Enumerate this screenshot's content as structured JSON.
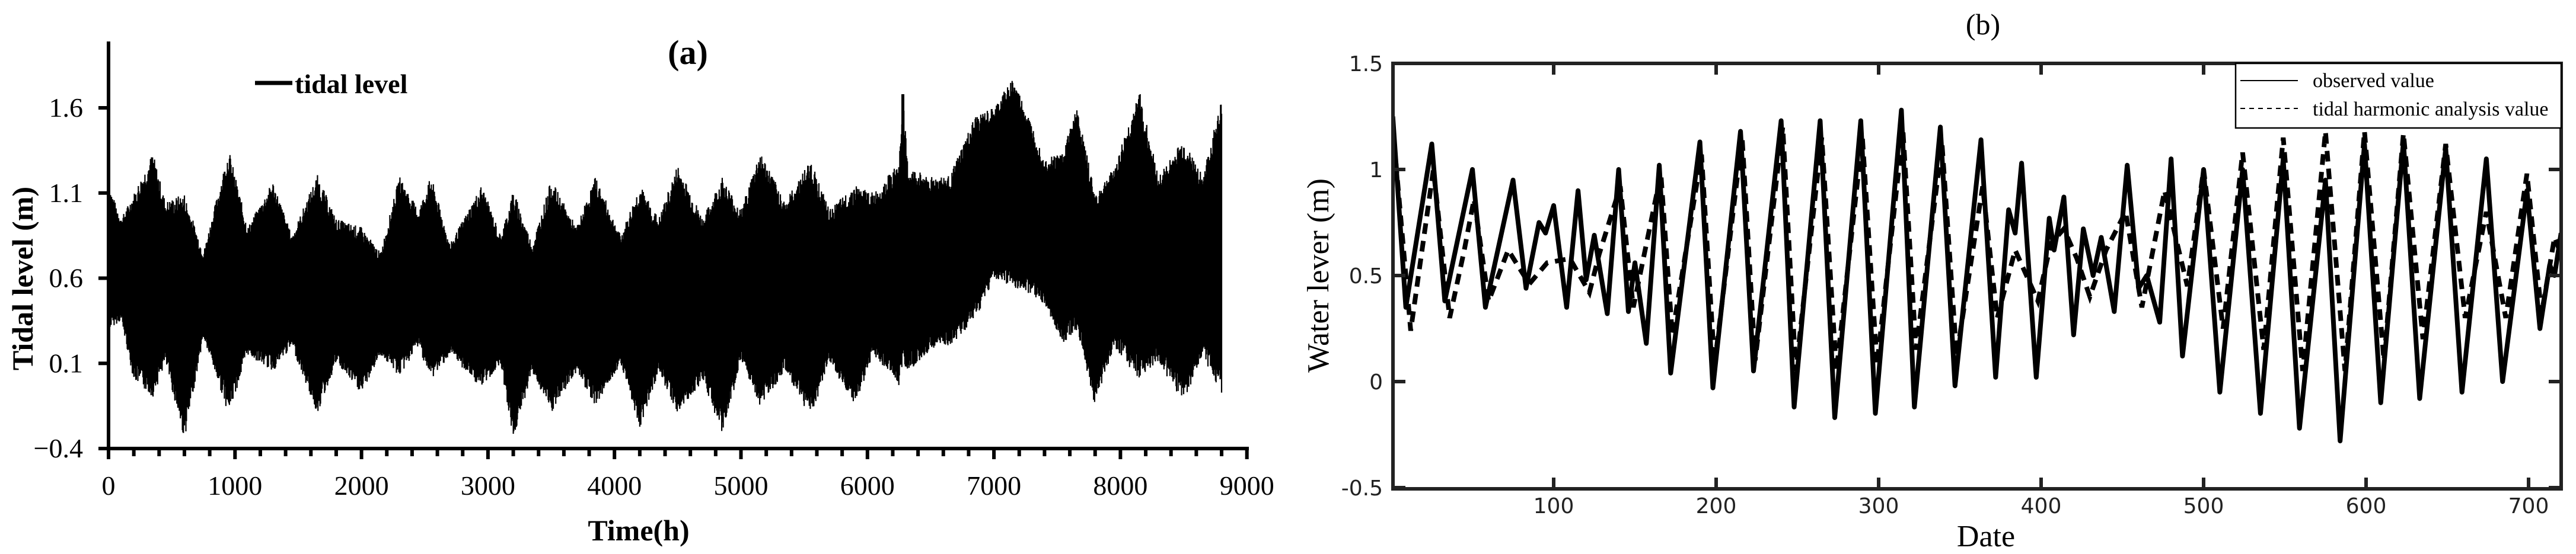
{
  "chart_data": [
    {
      "panel": "(a)",
      "type": "line",
      "title": "(a)",
      "xlabel": "Time(h)",
      "ylabel": "Tidal level (m)",
      "xlim": [
        0,
        9000
      ],
      "ylim": [
        -0.4,
        2.1
      ],
      "xticks": [
        "0",
        "1000",
        "2000",
        "3000",
        "4000",
        "5000",
        "6000",
        "7000",
        "8000",
        "9000"
      ],
      "yticks": [
        "-0.4",
        "0.1",
        "0.6",
        "1.1",
        "1.6"
      ],
      "legend": [
        "tidal level"
      ],
      "legend_position": "upper-left",
      "grid": false,
      "note": "Hourly tidal series rendered as dense oscillation; values below are approximate upper/lower envelopes read from the plot",
      "series": [
        {
          "name": "tidal level",
          "envelope_x": [
            0,
            100,
            200,
            350,
            450,
            600,
            750,
            950,
            1100,
            1300,
            1450,
            1650,
            1800,
            2000,
            2150,
            2300,
            2450,
            2550,
            2700,
            2950,
            3100,
            3200,
            3350,
            3500,
            3700,
            3850,
            4050,
            4200,
            4350,
            4500,
            4700,
            4850,
            5000,
            5150,
            5350,
            5550,
            5700,
            5900,
            6050,
            6250,
            6280,
            6320,
            6500,
            6650,
            6850,
            7000,
            7150,
            7300,
            7400,
            7550,
            7650,
            7800,
            7950,
            8150,
            8300,
            8500,
            8650,
            8800
          ],
          "upper": [
            1.15,
            0.95,
            1.1,
            1.34,
            1.05,
            1.1,
            0.75,
            1.36,
            0.9,
            1.17,
            0.85,
            1.21,
            0.95,
            0.9,
            0.75,
            1.2,
            1.0,
            1.2,
            0.8,
            1.15,
            0.85,
            1.12,
            0.8,
            1.18,
            0.9,
            1.2,
            0.85,
            1.15,
            0.95,
            1.27,
            0.95,
            1.2,
            1.0,
            1.35,
            1.05,
            1.3,
            1.0,
            1.15,
            1.1,
            1.28,
            1.68,
            1.25,
            1.2,
            1.2,
            1.55,
            1.6,
            1.78,
            1.5,
            1.3,
            1.35,
            1.62,
            1.1,
            1.25,
            1.7,
            1.2,
            1.42,
            1.2,
            1.65
          ],
          "lower": [
            0.3,
            0.35,
            0.0,
            -0.1,
            0.1,
            -0.35,
            0.25,
            -0.2,
            0.15,
            0.05,
            0.2,
            -0.2,
            0.1,
            -0.08,
            0.15,
            0.02,
            0.2,
            0.0,
            0.15,
            -0.05,
            0.1,
            -0.35,
            0.05,
            -0.2,
            0.05,
            -0.15,
            0.1,
            -0.28,
            0.05,
            -0.2,
            0.0,
            -0.32,
            0.1,
            -0.15,
            0.05,
            -0.22,
            0.1,
            -0.15,
            0.15,
            -0.03,
            0.1,
            0.05,
            0.18,
            0.2,
            0.35,
            0.6,
            0.55,
            0.5,
            0.45,
            0.2,
            0.3,
            -0.15,
            0.2,
            0.0,
            0.1,
            -0.13,
            0.15,
            -0.1
          ],
          "color": "#000000"
        }
      ]
    },
    {
      "panel": "(b)",
      "type": "line",
      "title": "(b)",
      "xlabel": "Date",
      "ylabel": "Water lever (m)",
      "xlim": [
        1,
        720
      ],
      "ylim": [
        -0.5,
        1.5
      ],
      "xticks": [
        "100",
        "200",
        "300",
        "400",
        "500",
        "600",
        "700"
      ],
      "yticks": [
        "1.5",
        "1",
        "0.5",
        "0",
        "-0.5"
      ],
      "legend": [
        "observed value",
        "tidal harmonic analysis value"
      ],
      "legend_position": "upper-right",
      "grid": false,
      "series": [
        {
          "name": "observed value",
          "style": "solid",
          "x": [
            1,
            9,
            25,
            33,
            50,
            58,
            75,
            83,
            91,
            95,
            100,
            108,
            115,
            120,
            125,
            133,
            140,
            146,
            150,
            157,
            165,
            172,
            190,
            198,
            215,
            223,
            240,
            248,
            264,
            273,
            289,
            298,
            314,
            322,
            338,
            347,
            363,
            372,
            380,
            384,
            388,
            397,
            405,
            408,
            414,
            420,
            426,
            432,
            437,
            445,
            453,
            460,
            465,
            473,
            480,
            487,
            500,
            510,
            524,
            535,
            549,
            559,
            575,
            584,
            599,
            609,
            623,
            633,
            649,
            659,
            674,
            684,
            699,
            707,
            713,
            716,
            720
          ],
          "y": [
            1.25,
            0.35,
            1.12,
            0.38,
            1.0,
            0.35,
            0.95,
            0.44,
            0.75,
            0.7,
            0.83,
            0.35,
            0.9,
            0.48,
            0.69,
            0.32,
            1.0,
            0.33,
            0.56,
            0.18,
            1.02,
            0.04,
            1.13,
            -0.03,
            1.18,
            0.05,
            1.23,
            -0.12,
            1.23,
            -0.17,
            1.23,
            -0.15,
            1.28,
            -0.12,
            1.2,
            -0.02,
            1.14,
            0.02,
            0.81,
            0.7,
            1.03,
            0.02,
            0.77,
            0.62,
            0.87,
            0.22,
            0.72,
            0.5,
            0.68,
            0.33,
            1.02,
            0.44,
            0.5,
            0.28,
            1.05,
            0.12,
            1.0,
            -0.05,
            1.0,
            -0.15,
            1.05,
            -0.22,
            0.95,
            -0.28,
            1.12,
            -0.1,
            1.13,
            -0.08,
            1.1,
            -0.05,
            1.05,
            0.0,
            0.9,
            0.25,
            0.55,
            0.5,
            0.7
          ],
          "color": "#000000"
        },
        {
          "name": "tidal harmonic analysis value",
          "style": "dashed",
          "x": [
            1,
            12,
            26,
            36,
            45,
            51,
            60,
            72,
            85,
            96,
            110,
            122,
            128,
            141,
            149,
            166,
            173,
            191,
            199,
            216,
            224,
            241,
            249,
            265,
            274,
            290,
            299,
            315,
            323,
            339,
            348,
            364,
            373,
            384,
            398,
            406,
            414,
            422,
            430,
            440,
            452,
            462,
            476,
            490,
            500,
            512,
            524,
            537,
            549,
            561,
            575,
            587,
            599,
            611,
            623,
            635,
            649,
            661,
            674,
            686,
            699,
            708,
            716,
            720
          ],
          "y": [
            1.2,
            0.24,
            1.0,
            0.3,
            0.62,
            0.86,
            0.38,
            0.62,
            0.46,
            0.56,
            0.58,
            0.42,
            0.6,
            0.92,
            0.35,
            0.98,
            0.22,
            1.07,
            0.08,
            1.15,
            0.1,
            1.2,
            0.05,
            1.15,
            0.05,
            1.15,
            0.08,
            1.18,
            0.15,
            1.12,
            0.12,
            0.92,
            0.3,
            0.62,
            0.38,
            0.65,
            0.72,
            0.58,
            0.4,
            0.62,
            0.8,
            0.35,
            0.9,
            0.45,
            1.0,
            0.25,
            1.08,
            0.15,
            1.15,
            0.05,
            1.18,
            0.05,
            1.18,
            0.1,
            1.17,
            0.2,
            1.12,
            0.3,
            0.8,
            0.3,
            0.98,
            0.32,
            0.68,
            0.6
          ],
          "color": "#000000"
        }
      ]
    }
  ],
  "panel_a": {
    "title": "(a)",
    "xlabel": "Time(h)",
    "ylabel": "Tidal level (m)",
    "legend_label": "tidal level",
    "yticks": [
      "1.6",
      "1.1",
      "0.6",
      "0.1",
      "−0.4"
    ],
    "xticks": [
      "0",
      "1000",
      "2000",
      "3000",
      "4000",
      "5000",
      "6000",
      "7000",
      "8000",
      "9000"
    ]
  },
  "panel_b": {
    "title": "(b)",
    "xlabel": "Date",
    "ylabel": "Water lever (m)",
    "legend": {
      "observed": "observed value",
      "harmonic": "tidal harmonic analysis value"
    },
    "yticks": [
      "1.5",
      "1",
      "0.5",
      "0",
      "-0.5"
    ],
    "xticks": [
      "100",
      "200",
      "300",
      "400",
      "500",
      "600",
      "700"
    ]
  }
}
